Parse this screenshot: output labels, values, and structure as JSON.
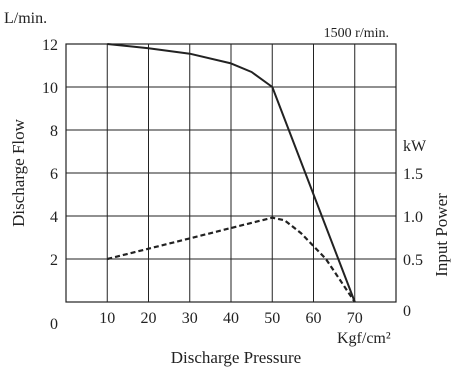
{
  "chart_data": {
    "type": "line",
    "title": "",
    "annotation": "1500 r/min.",
    "xlabel": "Discharge Pressure",
    "xunit": "Kgf/cm²",
    "ylabel_left": "Discharge Flow",
    "yunit_left": "L/min.",
    "ylabel_right": "Input Power",
    "yunit_right": "kW",
    "xlim": [
      0,
      80
    ],
    "ylim_left": [
      0,
      12
    ],
    "ylim_right": [
      0,
      3
    ],
    "x_ticks": [
      "10",
      "20",
      "30",
      "40",
      "50",
      "60",
      "70"
    ],
    "x_origin_label": "0",
    "left_ticks": [
      {
        "value": 2,
        "label": "2"
      },
      {
        "value": 4,
        "label": "4"
      },
      {
        "value": 6,
        "label": "6"
      },
      {
        "value": 8,
        "label": "8"
      },
      {
        "value": 10,
        "label": "10"
      },
      {
        "value": 12,
        "label": "12"
      }
    ],
    "right_ticks": [
      {
        "value": 0,
        "label": "0"
      },
      {
        "value": 0.5,
        "label": "0.5"
      },
      {
        "value": 1.0,
        "label": "1.0"
      },
      {
        "value": 1.5,
        "label": "1.5"
      }
    ],
    "grid": true,
    "series": [
      {
        "axis": "left",
        "style": "solid",
        "color": "#222222",
        "points": [
          [
            10,
            12
          ],
          [
            20,
            11.8
          ],
          [
            30,
            11.55
          ],
          [
            40,
            11.1
          ],
          [
            45,
            10.7
          ],
          [
            50,
            10
          ],
          [
            70,
            0
          ]
        ]
      },
      {
        "axis": "right",
        "style": "dashed",
        "color": "#222222",
        "points": [
          [
            10,
            0.5
          ],
          [
            20,
            0.62
          ],
          [
            30,
            0.74
          ],
          [
            40,
            0.86
          ],
          [
            50,
            0.98
          ],
          [
            53,
            0.95
          ],
          [
            57,
            0.8
          ],
          [
            63,
            0.5
          ],
          [
            70,
            0
          ]
        ]
      }
    ]
  }
}
